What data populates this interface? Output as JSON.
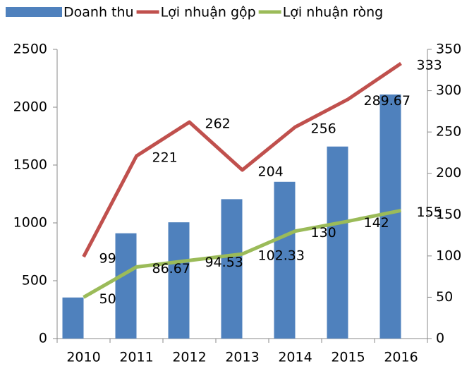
{
  "chart_data": {
    "type": "bar-line",
    "categories": [
      "2010",
      "2011",
      "2012",
      "2013",
      "2014",
      "2015",
      "2016"
    ],
    "series": [
      {
        "name": "Doanh thu",
        "color": "#4f81bd",
        "type": "bar",
        "values": [
          355,
          910,
          1005,
          1205,
          1355,
          1660,
          2110
        ]
      },
      {
        "name": "Lợi nhuận gộp",
        "color": "#c0504d",
        "type": "line",
        "axis": "y2",
        "values": [
          99,
          221,
          262,
          204,
          256,
          289.67,
          333
        ],
        "data_labels": true
      },
      {
        "name": "Lợi nhuận ròng",
        "color": "#9bbb59",
        "type": "line",
        "axis": "y2",
        "values": [
          50,
          86.67,
          94.53,
          102.33,
          130,
          142,
          155
        ],
        "data_labels": true
      }
    ],
    "ylim": [
      0,
      2500
    ],
    "yticks": [
      0,
      500,
      1000,
      1500,
      2000,
      2500
    ],
    "y2lim": [
      0,
      350
    ],
    "y2ticks": [
      0,
      50,
      100,
      150,
      200,
      250,
      300,
      350
    ],
    "legend": "top"
  }
}
